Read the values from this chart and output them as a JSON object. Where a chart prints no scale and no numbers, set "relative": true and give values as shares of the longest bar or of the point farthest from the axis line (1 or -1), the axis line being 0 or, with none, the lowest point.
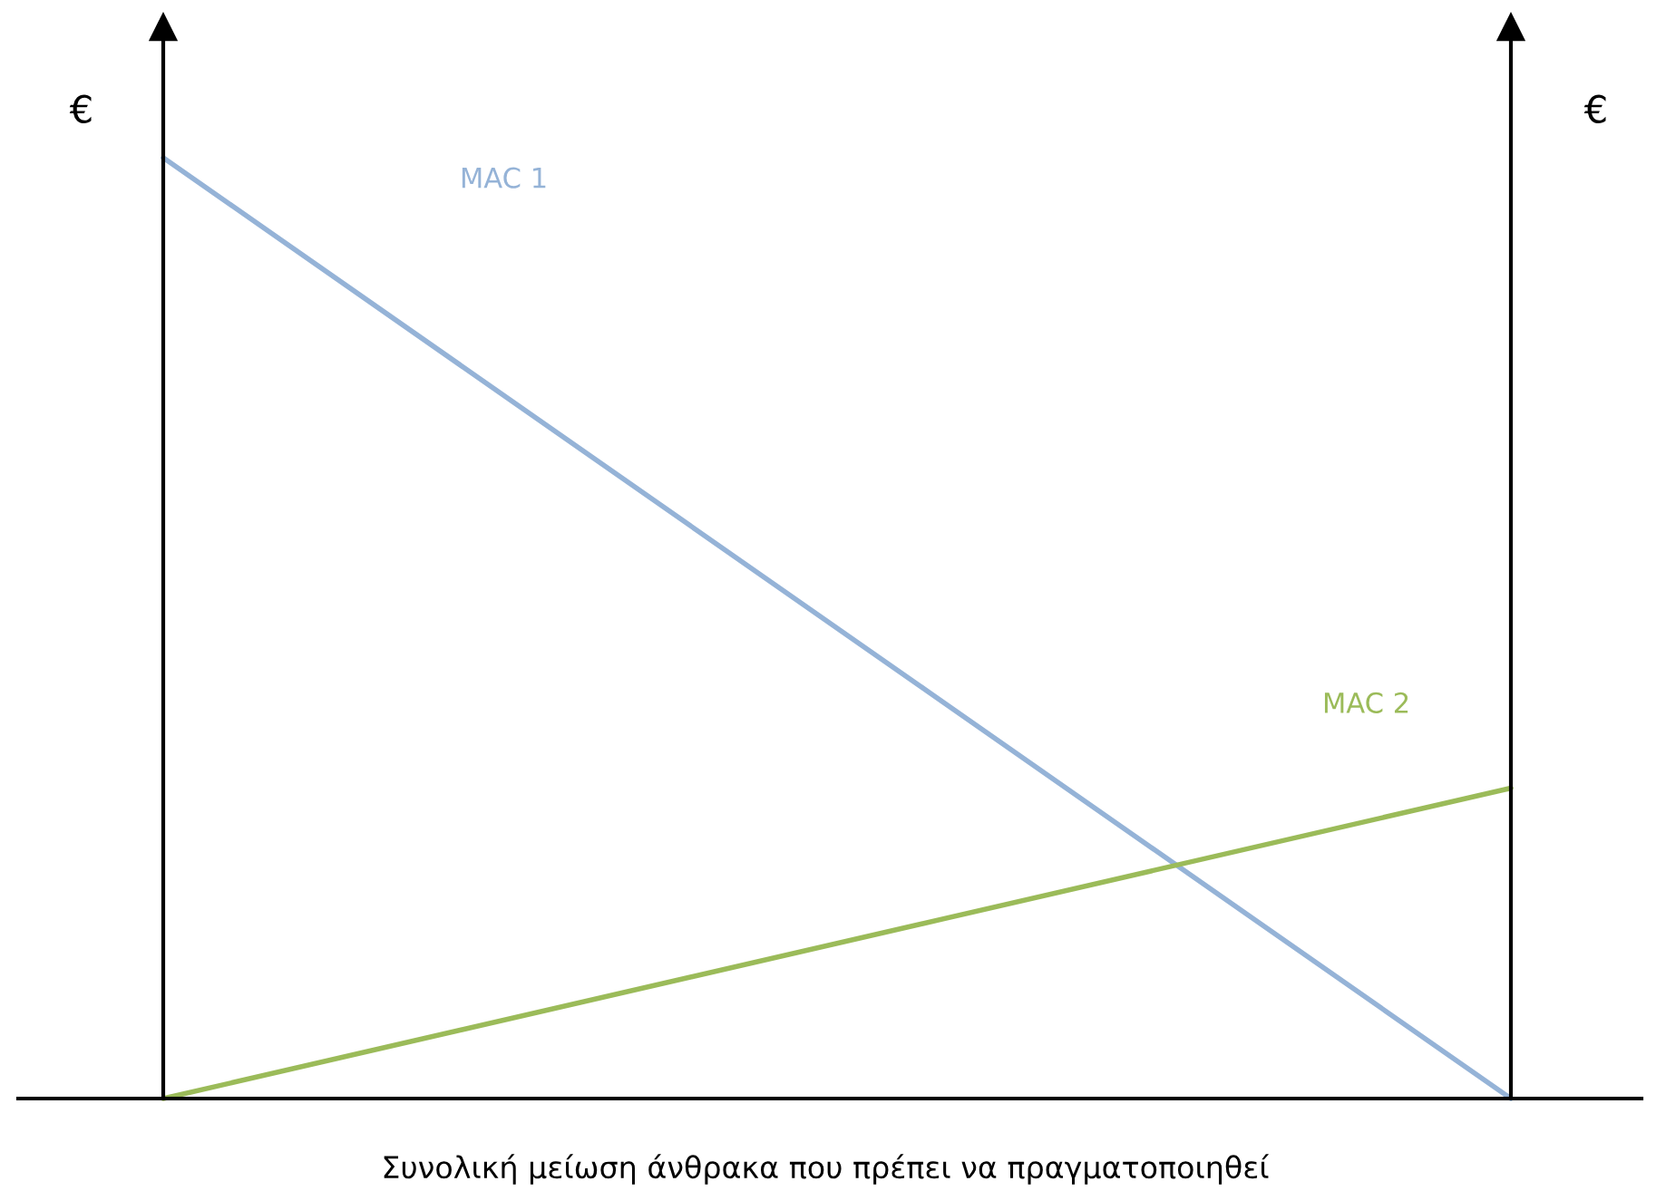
{
  "chart_data": {
    "type": "line",
    "relative": true,
    "categories": [
      null,
      null
    ],
    "ylabel": "€",
    "y2label": "€",
    "xlabel": "Συνολική μείωση άνθρακα που πρέπει να πραγματοποιηθεί",
    "series": [
      {
        "name": "MAC 1",
        "color": "#95b3d7",
        "values": [
          1,
          0
        ]
      },
      {
        "name": "MAC 2",
        "color": "#9bbb59",
        "values": [
          0,
          0.33
        ]
      }
    ]
  }
}
